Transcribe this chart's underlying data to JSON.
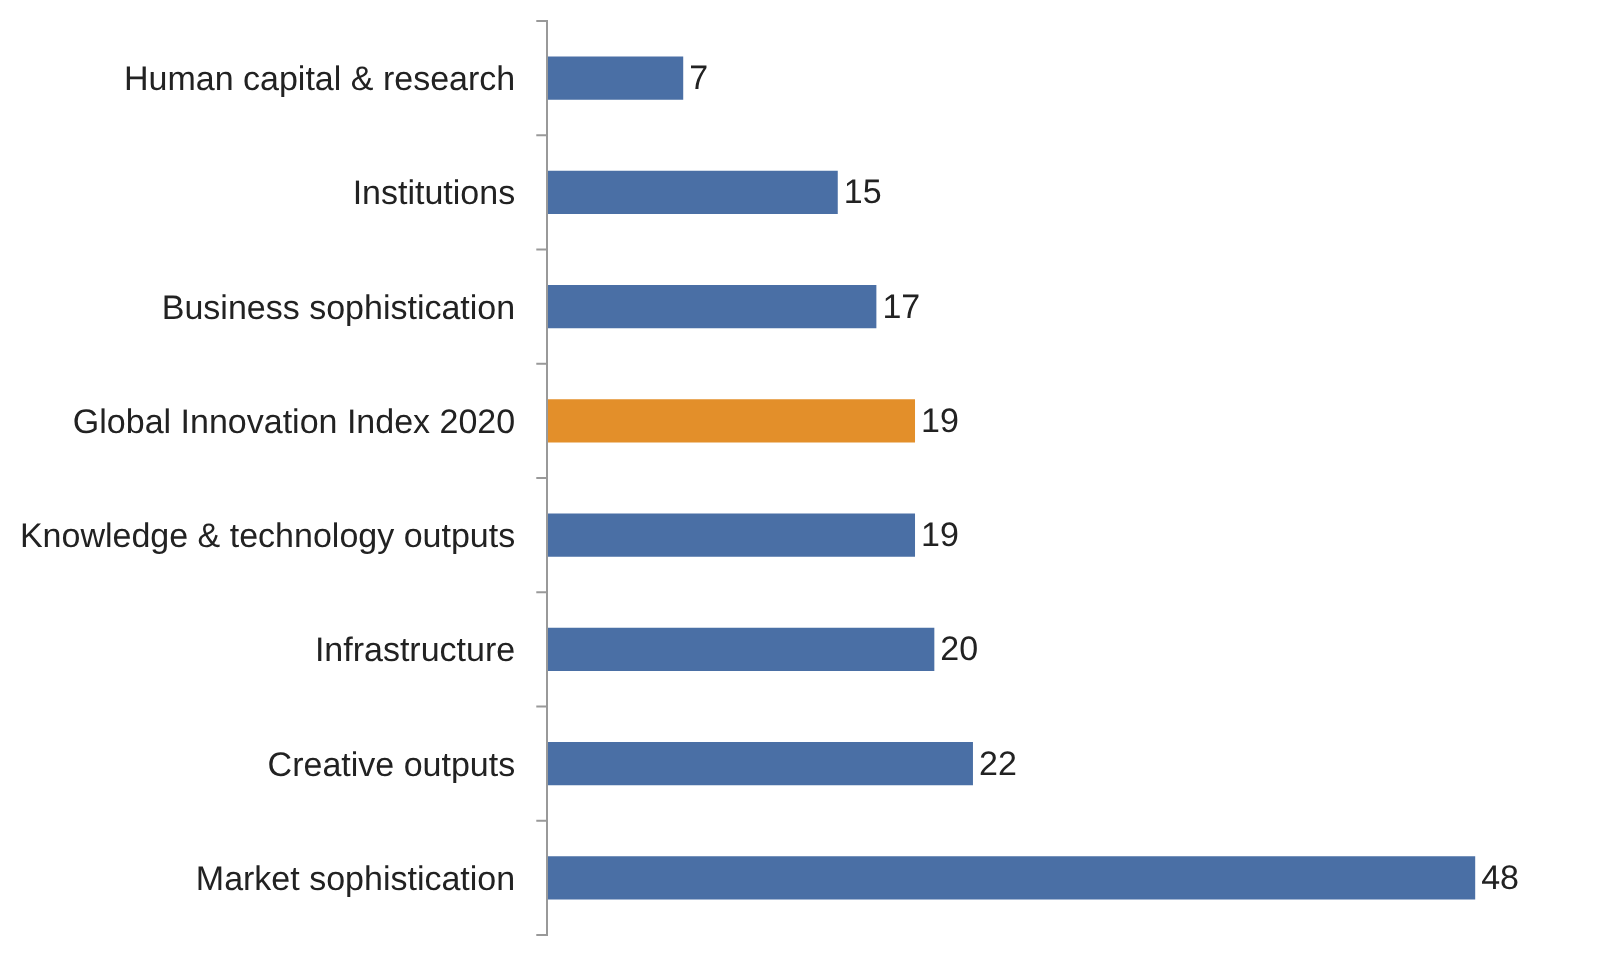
{
  "chart_data": {
    "type": "bar",
    "orientation": "horizontal",
    "categories": [
      "Human capital & research",
      "Institutions",
      "Business sophistication",
      "Global Innovation Index 2020",
      "Knowledge & technology outputs",
      "Infrastructure",
      "Creative outputs",
      "Market sophistication"
    ],
    "values": [
      7,
      15,
      17,
      19,
      19,
      20,
      22,
      48
    ],
    "colors": [
      "#4a6fa5",
      "#4a6fa5",
      "#4a6fa5",
      "#e38f2a",
      "#4a6fa5",
      "#4a6fa5",
      "#4a6fa5",
      "#4a6fa5"
    ],
    "data_labels": true,
    "tick_labels": "y"
  }
}
